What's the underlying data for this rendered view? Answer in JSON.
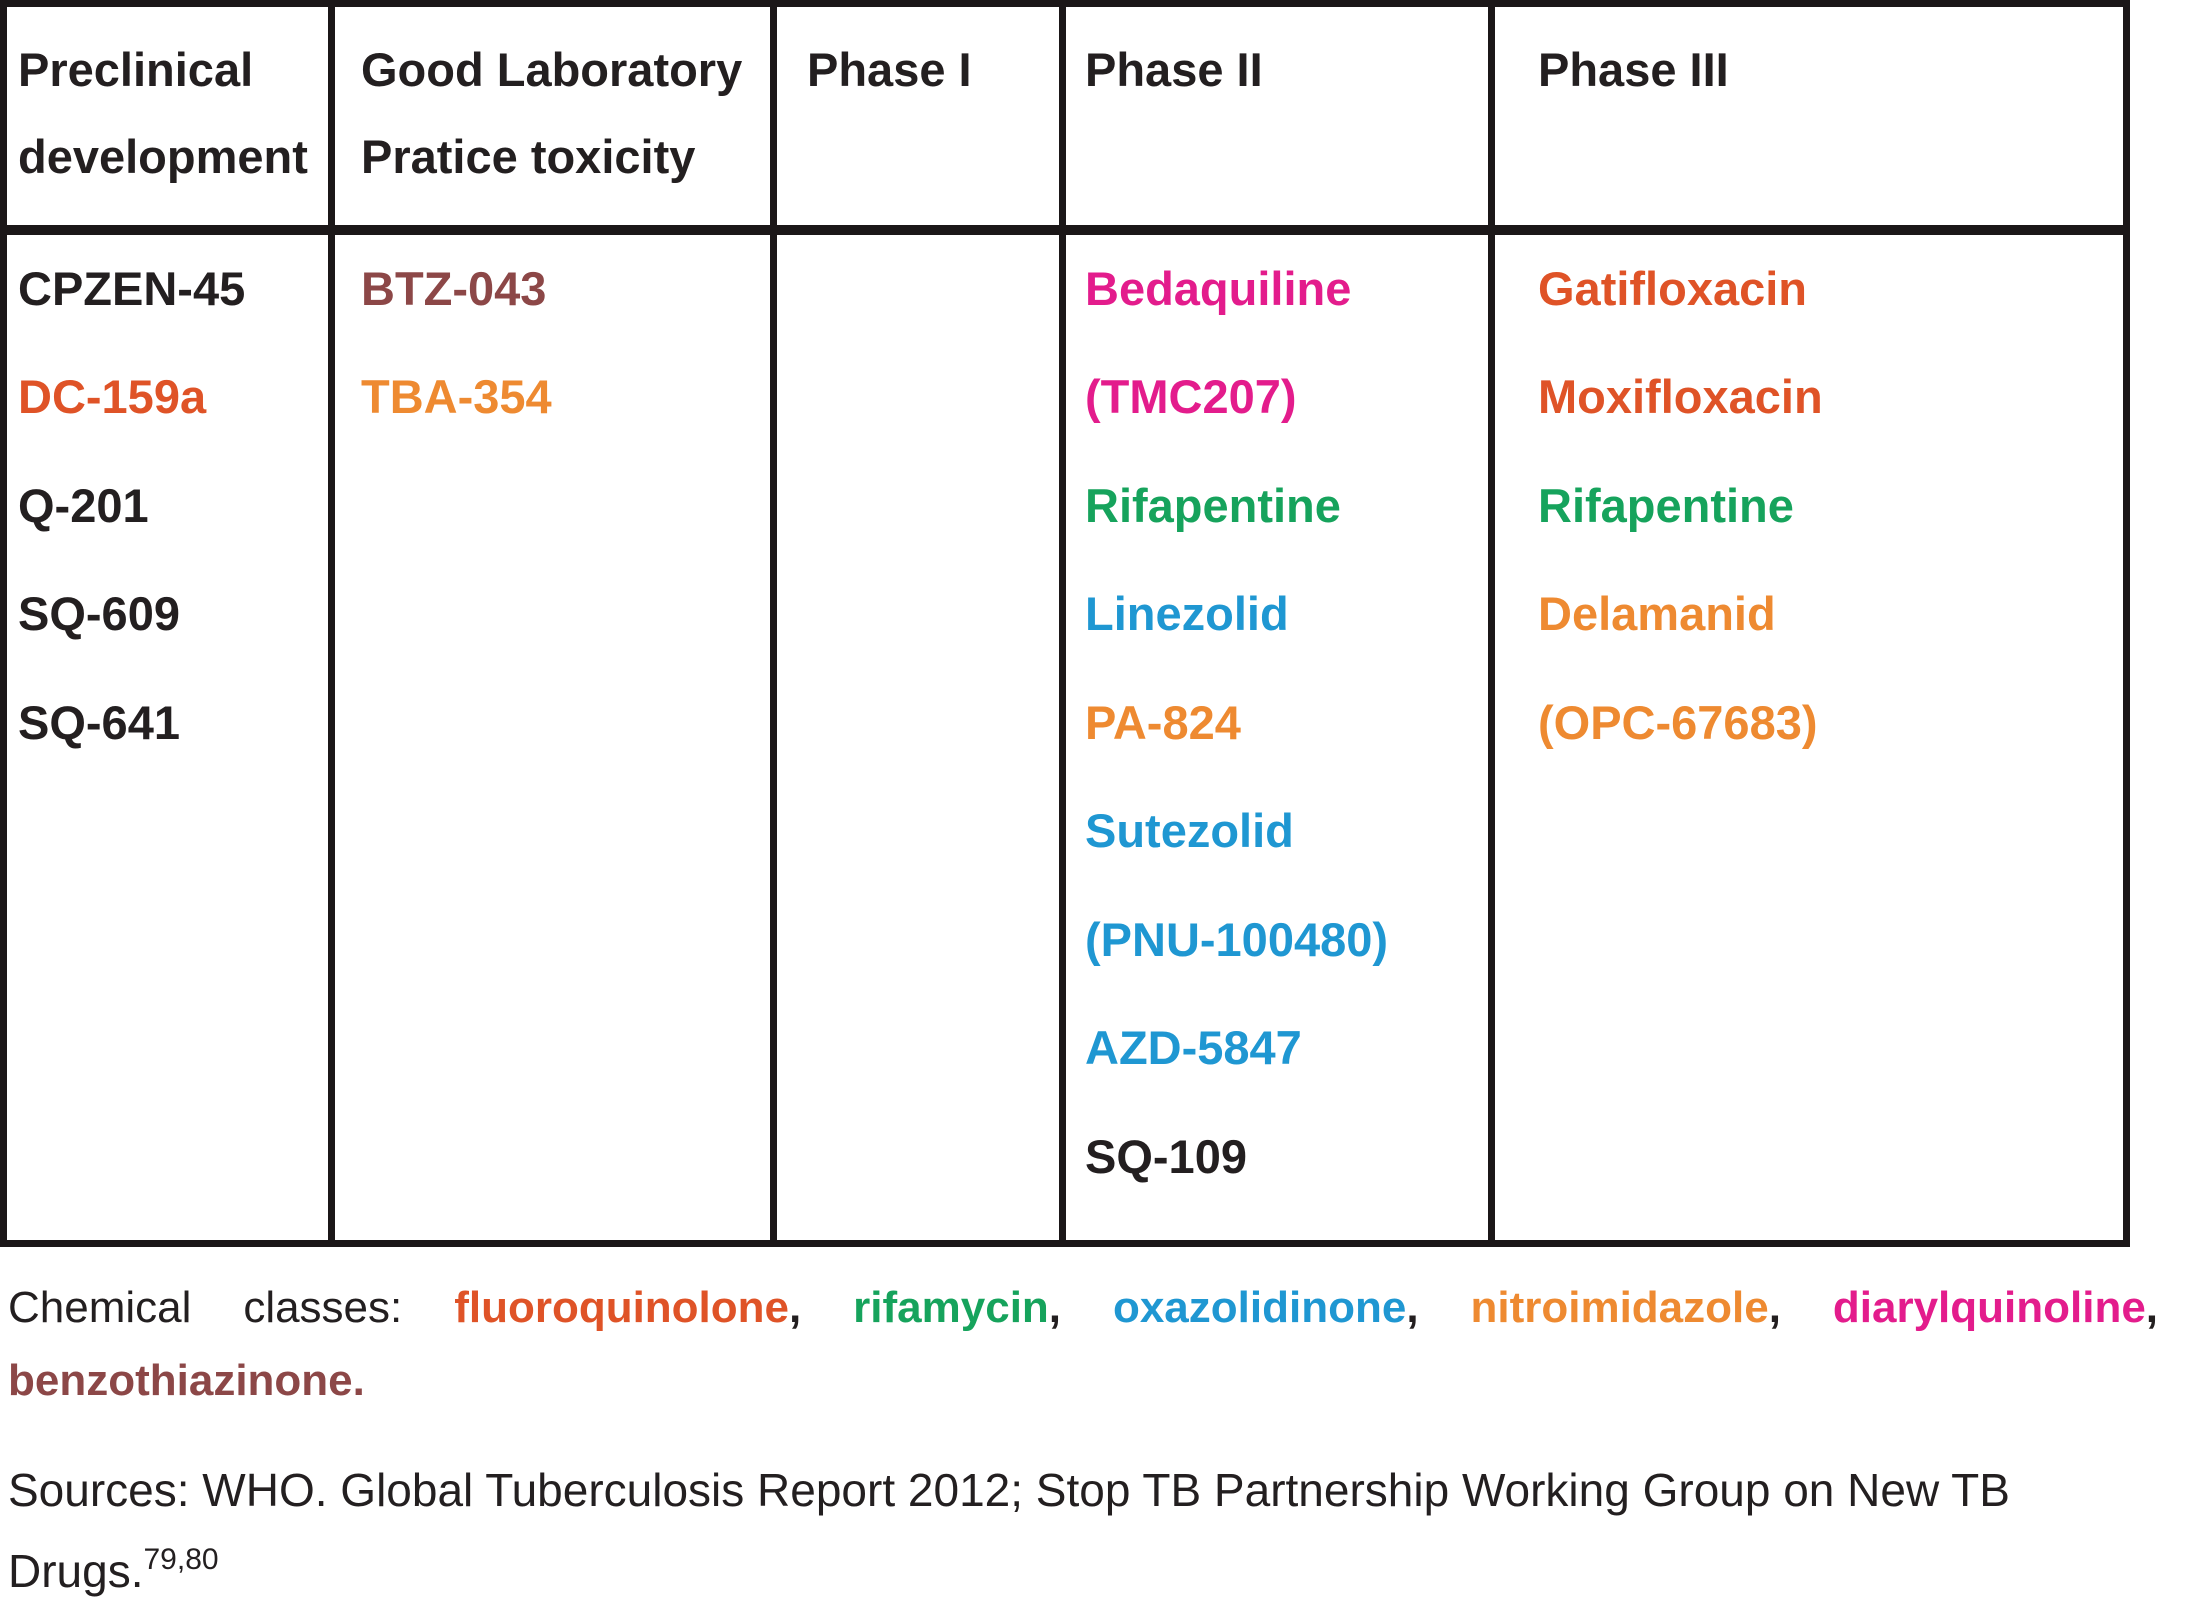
{
  "colors": {
    "black": "#231F20",
    "red_orange": "#DF5327",
    "orange": "#EE8A31",
    "brown": "#8C4747",
    "magenta": "#E31C8C",
    "green": "#16A35C",
    "blue": "#1F97D2"
  },
  "table": {
    "columns": [
      {
        "header": "Preclinical development",
        "items": [
          {
            "label": "CPZEN-45",
            "color": "black"
          },
          {
            "label": "DC-159a",
            "color": "red_orange"
          },
          {
            "label": "Q-201",
            "color": "black"
          },
          {
            "label": "SQ-609",
            "color": "black"
          },
          {
            "label": "SQ-641",
            "color": "black"
          }
        ]
      },
      {
        "header": "Good Laboratory Pratice toxicity",
        "items": [
          {
            "label": "BTZ-043",
            "color": "brown"
          },
          {
            "label": "TBA-354",
            "color": "orange"
          }
        ]
      },
      {
        "header": "Phase I",
        "items": []
      },
      {
        "header": "Phase II",
        "items": [
          {
            "label": "Bedaquiline",
            "color": "magenta"
          },
          {
            "label": "(TMC207)",
            "color": "magenta"
          },
          {
            "label": "Rifapentine",
            "color": "green"
          },
          {
            "label": "Linezolid",
            "color": "blue"
          },
          {
            "label": "PA-824",
            "color": "orange"
          },
          {
            "label": "Sutezolid",
            "color": "blue"
          },
          {
            "label": "(PNU-100480)",
            "color": "blue"
          },
          {
            "label": "AZD-5847",
            "color": "blue"
          },
          {
            "label": "SQ-109",
            "color": "black"
          }
        ]
      },
      {
        "header": "Phase III",
        "items": [
          {
            "label": "Gatifloxacin",
            "color": "red_orange"
          },
          {
            "label": "Moxifloxacin",
            "color": "red_orange"
          },
          {
            "label": "Rifapentine",
            "color": "green"
          },
          {
            "label": "Delamanid",
            "color": "orange"
          },
          {
            "label": "(OPC-67683)",
            "color": "orange"
          }
        ]
      }
    ]
  },
  "caption": {
    "segments": [
      {
        "text": "Chemical classes: ",
        "color": "black",
        "bold": false
      },
      {
        "text": "fluoroquinolone",
        "color": "red_orange",
        "bold": true
      },
      {
        "text": ", ",
        "color": "black",
        "bold": true
      },
      {
        "text": "rifamycin",
        "color": "green",
        "bold": true
      },
      {
        "text": ", ",
        "color": "black",
        "bold": true
      },
      {
        "text": "oxazolidinone",
        "color": "blue",
        "bold": true
      },
      {
        "text": ", ",
        "color": "black",
        "bold": true
      },
      {
        "text": "nitroimidazole",
        "color": "orange",
        "bold": true
      },
      {
        "text": ", ",
        "color": "black",
        "bold": true
      },
      {
        "text": "diarylquinoline",
        "color": "magenta",
        "bold": true
      },
      {
        "text": ",",
        "color": "black",
        "bold": true
      }
    ],
    "line2": {
      "text": "benzothiazinone.",
      "color": "brown"
    }
  },
  "sources": {
    "line1": "Sources: WHO. Global Tuberculosis Report 2012; Stop TB Partnership Working Group on New TB",
    "line2_prefix": "Drugs.",
    "superscript": "79,80"
  }
}
